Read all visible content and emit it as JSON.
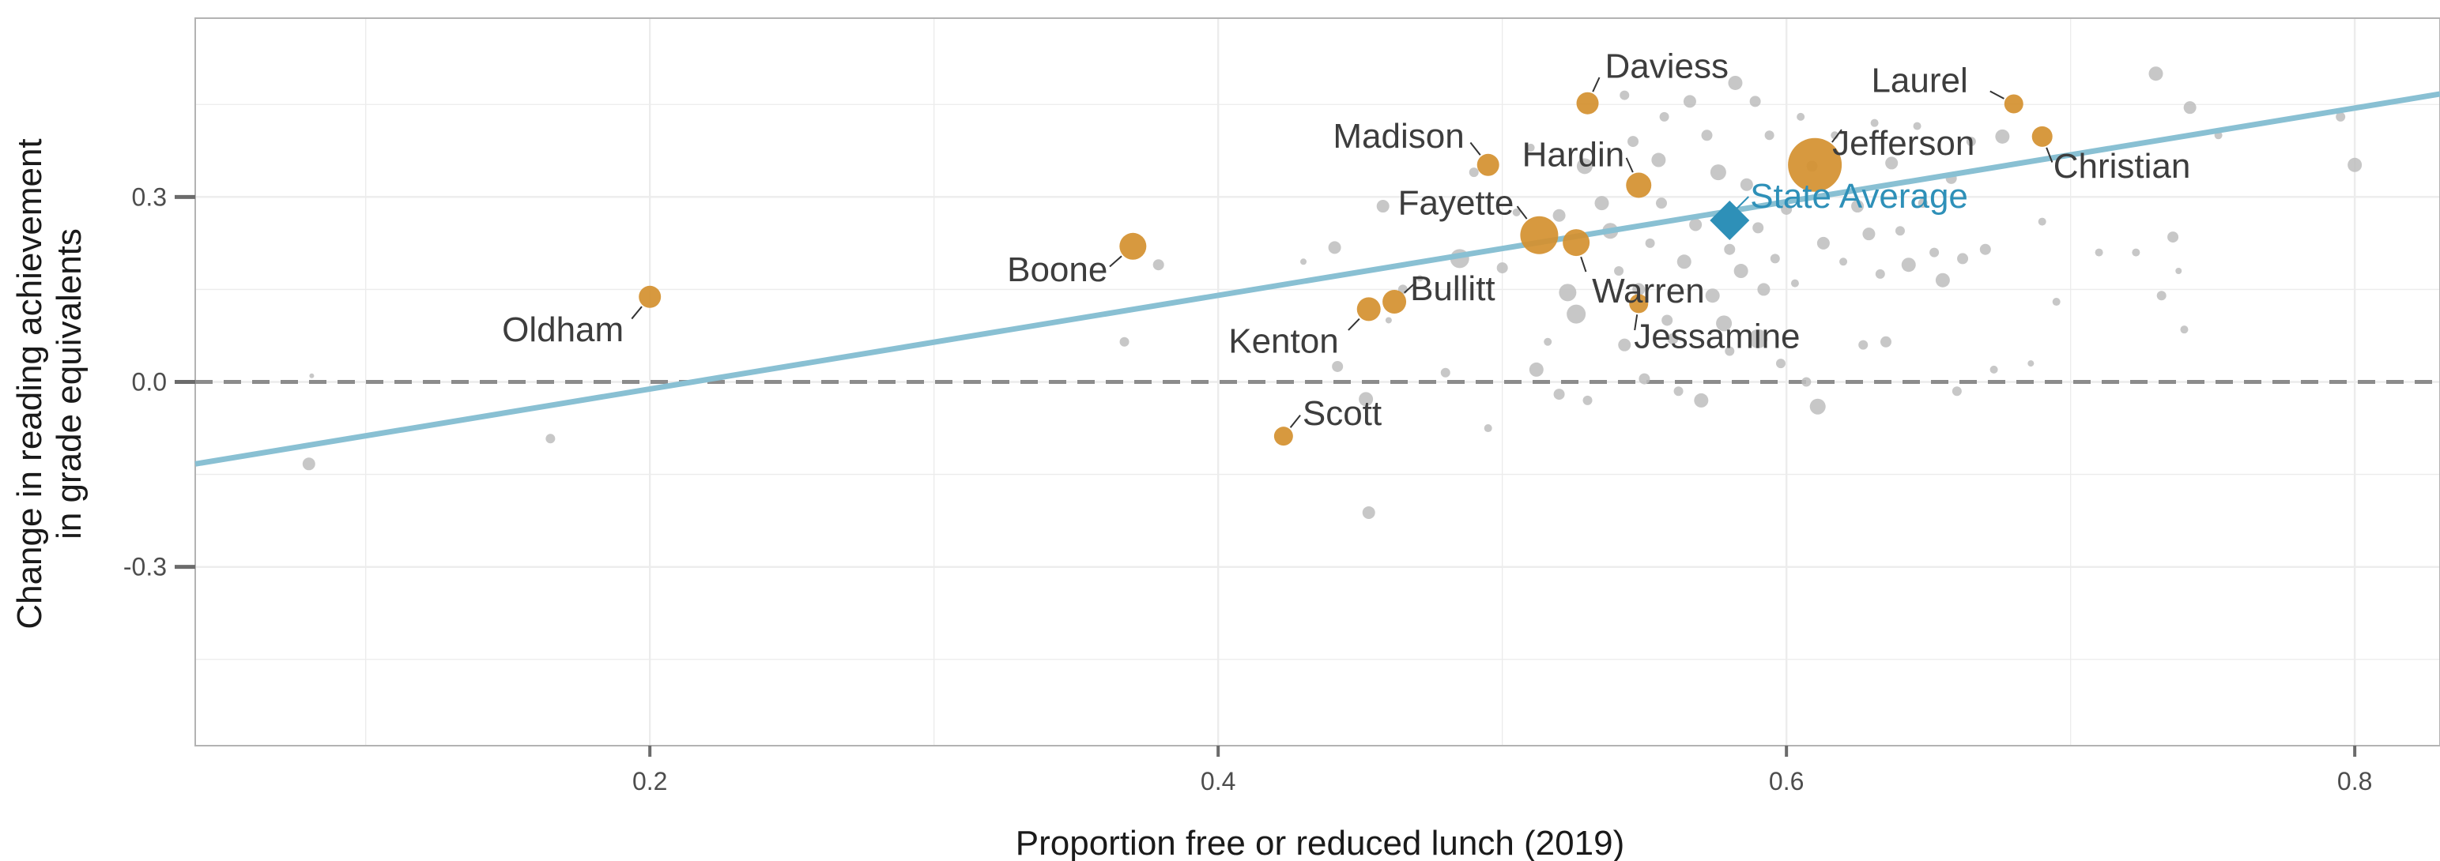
{
  "chart_data": {
    "type": "scatter",
    "xlabel": "Proportion free or reduced lunch (2019)",
    "ylabel_lines": [
      "Change in reading  achievement",
      "in grade equivalents"
    ],
    "xlim": [
      0.04,
      0.83
    ],
    "ylim": [
      -0.59,
      0.59
    ],
    "x_ticks": [
      0.2,
      0.4,
      0.6,
      0.8
    ],
    "x_tick_labels": [
      "0.2",
      "0.4",
      "0.6",
      "0.8"
    ],
    "y_ticks": [
      -0.3,
      0.0,
      0.3
    ],
    "y_tick_labels": [
      "-0.3",
      "0.0",
      "0.3"
    ],
    "reference_line_y": 0.0,
    "grid": true,
    "colors": {
      "highlight": "#d4902f",
      "other": "#bdbdbd",
      "trend": "#89c0d3",
      "state_average": "#2e90b8",
      "reference": "#8c8c8c"
    },
    "trend_line": {
      "x": [
        0.04,
        0.83
      ],
      "y": [
        -0.133,
        0.467
      ]
    },
    "state_average": {
      "label": "State Average",
      "x": 0.58,
      "y": 0.262
    },
    "highlighted": [
      {
        "label": "Daviess",
        "x": 0.53,
        "y": 0.452,
        "size": 14
      },
      {
        "label": "Laurel",
        "x": 0.68,
        "y": 0.451,
        "size": 12
      },
      {
        "label": "Madison",
        "x": 0.495,
        "y": 0.352,
        "size": 14
      },
      {
        "label": "Jefferson",
        "x": 0.61,
        "y": 0.352,
        "size": 34
      },
      {
        "label": "Christian",
        "x": 0.69,
        "y": 0.398,
        "size": 13
      },
      {
        "label": "Hardin",
        "x": 0.548,
        "y": 0.319,
        "size": 16
      },
      {
        "label": "Fayette",
        "x": 0.513,
        "y": 0.238,
        "size": 24
      },
      {
        "label": "Warren",
        "x": 0.526,
        "y": 0.226,
        "size": 17
      },
      {
        "label": "Boone",
        "x": 0.37,
        "y": 0.22,
        "size": 17
      },
      {
        "label": "Oldham",
        "x": 0.2,
        "y": 0.138,
        "size": 14
      },
      {
        "label": "Bullitt",
        "x": 0.462,
        "y": 0.13,
        "size": 15
      },
      {
        "label": "Kenton",
        "x": 0.453,
        "y": 0.118,
        "size": 15
      },
      {
        "label": "Jessamine",
        "x": 0.548,
        "y": 0.127,
        "size": 12
      },
      {
        "label": "Scott",
        "x": 0.423,
        "y": -0.088,
        "size": 12
      }
    ],
    "others": [
      [
        0.08,
        -0.133,
        8
      ],
      [
        0.165,
        -0.092,
        6
      ],
      [
        0.081,
        0.01,
        3
      ],
      [
        0.367,
        0.065,
        6
      ],
      [
        0.379,
        0.19,
        7
      ],
      [
        0.441,
        0.218,
        8
      ],
      [
        0.442,
        0.025,
        7
      ],
      [
        0.452,
        -0.028,
        9
      ],
      [
        0.453,
        -0.212,
        8
      ],
      [
        0.46,
        0.1,
        4
      ],
      [
        0.43,
        0.195,
        4
      ],
      [
        0.458,
        0.285,
        8
      ],
      [
        0.465,
        0.15,
        6
      ],
      [
        0.471,
        0.168,
        4
      ],
      [
        0.48,
        0.015,
        6
      ],
      [
        0.485,
        0.2,
        12
      ],
      [
        0.49,
        0.34,
        6
      ],
      [
        0.495,
        -0.075,
        5
      ],
      [
        0.5,
        0.185,
        7
      ],
      [
        0.505,
        0.275,
        5
      ],
      [
        0.51,
        0.38,
        5
      ],
      [
        0.512,
        0.02,
        9
      ],
      [
        0.516,
        0.065,
        5
      ],
      [
        0.52,
        0.27,
        8
      ],
      [
        0.52,
        -0.02,
        7
      ],
      [
        0.523,
        0.145,
        11
      ],
      [
        0.526,
        0.11,
        12
      ],
      [
        0.529,
        0.35,
        10
      ],
      [
        0.53,
        -0.03,
        6
      ],
      [
        0.535,
        0.29,
        9
      ],
      [
        0.538,
        0.245,
        10
      ],
      [
        0.541,
        0.18,
        6
      ],
      [
        0.543,
        0.06,
        8
      ],
      [
        0.543,
        0.465,
        6
      ],
      [
        0.546,
        0.39,
        7
      ],
      [
        0.548,
        0.15,
        8
      ],
      [
        0.55,
        0.005,
        7
      ],
      [
        0.552,
        0.225,
        6
      ],
      [
        0.555,
        0.36,
        9
      ],
      [
        0.556,
        0.29,
        7
      ],
      [
        0.557,
        0.43,
        6
      ],
      [
        0.558,
        0.1,
        7
      ],
      [
        0.56,
        0.07,
        7
      ],
      [
        0.562,
        -0.015,
        6
      ],
      [
        0.564,
        0.195,
        9
      ],
      [
        0.566,
        0.455,
        8
      ],
      [
        0.568,
        0.255,
        8
      ],
      [
        0.57,
        -0.03,
        9
      ],
      [
        0.572,
        0.4,
        7
      ],
      [
        0.574,
        0.14,
        9
      ],
      [
        0.576,
        0.34,
        10
      ],
      [
        0.578,
        0.095,
        10
      ],
      [
        0.58,
        0.215,
        7
      ],
      [
        0.58,
        0.05,
        6
      ],
      [
        0.582,
        0.485,
        9
      ],
      [
        0.584,
        0.18,
        9
      ],
      [
        0.586,
        0.32,
        8
      ],
      [
        0.589,
        0.455,
        7
      ],
      [
        0.59,
        0.07,
        12
      ],
      [
        0.59,
        0.25,
        7
      ],
      [
        0.592,
        0.15,
        8
      ],
      [
        0.594,
        0.4,
        6
      ],
      [
        0.596,
        0.2,
        6
      ],
      [
        0.598,
        0.03,
        6
      ],
      [
        0.6,
        0.28,
        7
      ],
      [
        0.603,
        0.16,
        5
      ],
      [
        0.605,
        0.43,
        5
      ],
      [
        0.607,
        0.0,
        6
      ],
      [
        0.609,
        0.35,
        7
      ],
      [
        0.611,
        -0.04,
        10
      ],
      [
        0.613,
        0.225,
        8
      ],
      [
        0.617,
        0.4,
        5
      ],
      [
        0.62,
        0.195,
        5
      ],
      [
        0.625,
        0.285,
        8
      ],
      [
        0.627,
        0.06,
        6
      ],
      [
        0.629,
        0.24,
        8
      ],
      [
        0.631,
        0.42,
        5
      ],
      [
        0.633,
        0.175,
        6
      ],
      [
        0.635,
        0.065,
        7
      ],
      [
        0.637,
        0.355,
        8
      ],
      [
        0.64,
        0.245,
        6
      ],
      [
        0.643,
        0.19,
        9
      ],
      [
        0.646,
        0.415,
        5
      ],
      [
        0.648,
        0.29,
        6
      ],
      [
        0.652,
        0.21,
        6
      ],
      [
        0.655,
        0.165,
        9
      ],
      [
        0.658,
        0.33,
        7
      ],
      [
        0.66,
        -0.015,
        6
      ],
      [
        0.662,
        0.2,
        7
      ],
      [
        0.665,
        0.39,
        6
      ],
      [
        0.67,
        0.215,
        7
      ],
      [
        0.673,
        0.02,
        5
      ],
      [
        0.676,
        0.398,
        9
      ],
      [
        0.686,
        0.03,
        4
      ],
      [
        0.69,
        0.26,
        5
      ],
      [
        0.695,
        0.13,
        5
      ],
      [
        0.71,
        0.21,
        5
      ],
      [
        0.723,
        0.21,
        5
      ],
      [
        0.73,
        0.5,
        9
      ],
      [
        0.732,
        0.14,
        6
      ],
      [
        0.736,
        0.235,
        7
      ],
      [
        0.738,
        0.18,
        4
      ],
      [
        0.74,
        0.085,
        5
      ],
      [
        0.742,
        0.445,
        8
      ],
      [
        0.752,
        0.4,
        5
      ],
      [
        0.795,
        0.43,
        6
      ],
      [
        0.8,
        0.352,
        9
      ]
    ]
  }
}
